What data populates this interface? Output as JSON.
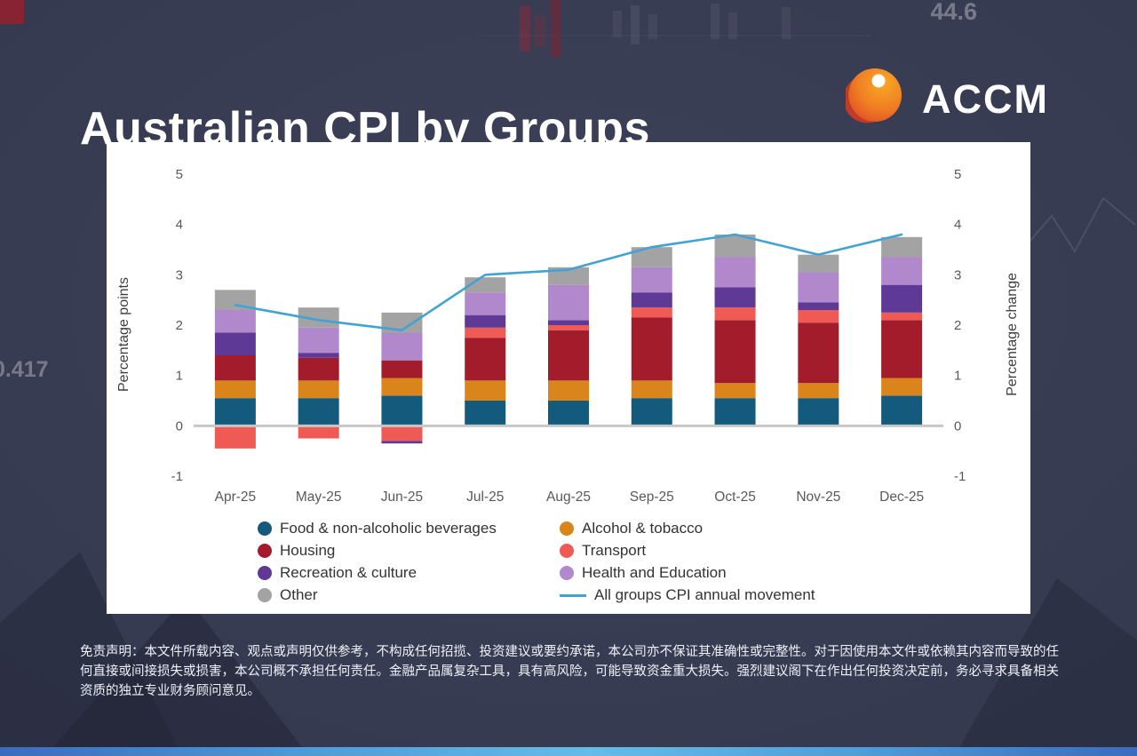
{
  "page": {
    "title": "Australian CPI by Groups",
    "brand": "ACCM",
    "disclaimer": "免责声明：本文件所载内容、观点或声明仅供参考，不构成任何招揽、投资建议或要约承诺，本公司亦不保证其准确性或完整性。对于因使用本文件或依赖其内容而导致的任何直接或间接损失或损害，本公司概不承担任何责任。金融产品属复杂工具，具有高风险，可能导致资金重大损失。强烈建议阁下在作出任何投资决定前，务必寻求具备相关资质的独立专业财务顾问意见。"
  },
  "background": {
    "ticker_top_right": "44.6",
    "ticker_left": "0.417"
  },
  "chart_data": {
    "type": "bar",
    "stacked": true,
    "categories": [
      "Apr-25",
      "May-25",
      "Jun-25",
      "Jul-25",
      "Aug-25",
      "Sep-25",
      "Oct-25",
      "Nov-25",
      "Dec-25"
    ],
    "series": [
      {
        "name": "Food & non-alcoholic beverages",
        "color": "#145a7d",
        "values": [
          0.55,
          0.55,
          0.6,
          0.5,
          0.5,
          0.55,
          0.55,
          0.55,
          0.6
        ]
      },
      {
        "name": "Alcohol & tobacco",
        "color": "#d9851c",
        "values": [
          0.35,
          0.35,
          0.35,
          0.4,
          0.4,
          0.35,
          0.3,
          0.3,
          0.35
        ]
      },
      {
        "name": "Housing",
        "color": "#a21c2c",
        "values": [
          0.5,
          0.45,
          0.35,
          0.85,
          1.0,
          1.25,
          1.25,
          1.2,
          1.15
        ]
      },
      {
        "name": "Transport",
        "color": "#ef5a55",
        "values": [
          -0.45,
          -0.25,
          -0.3,
          0.2,
          0.1,
          0.2,
          0.25,
          0.25,
          0.15
        ]
      },
      {
        "name": "Recreation & culture",
        "color": "#5e3a96",
        "values": [
          0.45,
          0.1,
          -0.05,
          0.25,
          0.1,
          0.3,
          0.4,
          0.15,
          0.55
        ]
      },
      {
        "name": "Health and Education",
        "color": "#b288cc",
        "values": [
          0.45,
          0.5,
          0.55,
          0.45,
          0.7,
          0.5,
          0.6,
          0.6,
          0.55
        ]
      },
      {
        "name": "Other",
        "color": "#a3a3a3",
        "values": [
          0.4,
          0.4,
          0.4,
          0.3,
          0.35,
          0.4,
          0.45,
          0.35,
          0.4
        ]
      }
    ],
    "line_series": {
      "name": "All groups CPI annual movement",
      "color": "#43a2d4",
      "values": [
        2.4,
        2.1,
        1.9,
        3.0,
        3.1,
        3.55,
        3.8,
        3.4,
        3.8
      ]
    },
    "ylabel_left": "Percentage points",
    "ylabel_right": "Percentage change",
    "ylim": [
      -1,
      5
    ],
    "yticks": [
      5,
      4,
      3,
      2,
      1,
      0,
      -1
    ],
    "legend_position": "bottom",
    "grid": false
  }
}
